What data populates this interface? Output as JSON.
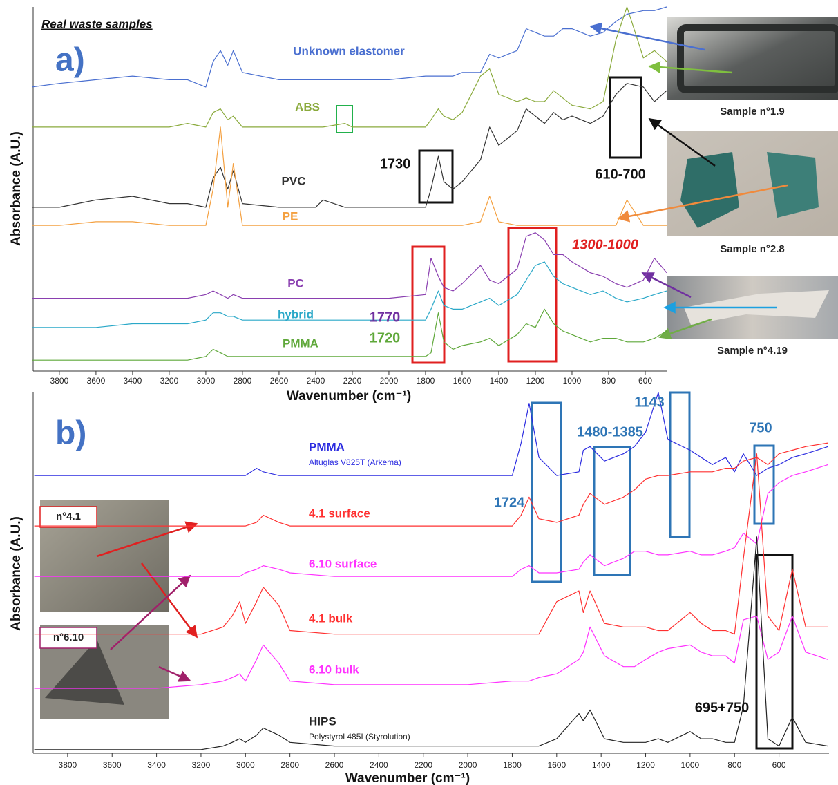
{
  "chart_data": [
    {
      "type": "line",
      "panel": "a)",
      "header": "Real waste samples",
      "x_label": "Wavenumber (cm⁻¹)",
      "y_label": "Absorbance (A.U.)",
      "xlim": [
        3943,
        483
      ],
      "xticks": [
        3800,
        3600,
        3400,
        3200,
        3000,
        2800,
        2600,
        2400,
        2200,
        2000,
        1800,
        1600,
        1400,
        1200,
        1000,
        800,
        600
      ],
      "ylim": [
        0,
        100
      ],
      "x": [
        3950,
        3800,
        3600,
        3400,
        3200,
        3100,
        3000,
        2960,
        2920,
        2880,
        2850,
        2800,
        2600,
        2400,
        2360,
        2240,
        2200,
        2000,
        1800,
        1770,
        1730,
        1700,
        1650,
        1600,
        1500,
        1450,
        1400,
        1300,
        1250,
        1200,
        1150,
        1100,
        1050,
        1000,
        900,
        830,
        760,
        700,
        610,
        550,
        483
      ],
      "series": [
        {
          "name": "Unknown elastomer",
          "color": "#4a6fd0",
          "values": [
            78,
            79,
            80,
            81,
            80,
            80,
            78,
            85,
            88,
            84,
            88,
            82,
            80,
            80,
            80,
            80,
            80,
            80,
            81,
            81,
            81,
            81,
            81,
            82,
            82,
            87,
            86,
            88,
            94,
            93,
            92,
            92,
            94,
            94,
            92,
            93,
            96,
            98,
            99,
            99,
            100
          ]
        },
        {
          "name": "ABS",
          "color": "#8aaa3c",
          "values": [
            67,
            67,
            67,
            67,
            67,
            68,
            67,
            71,
            72,
            69,
            70,
            67,
            67,
            67,
            67,
            68,
            67,
            67,
            67,
            69,
            72,
            70,
            69,
            71,
            81,
            83,
            76,
            74,
            75,
            74,
            74,
            77,
            75,
            73,
            72,
            74,
            91,
            100,
            86,
            88,
            85
          ]
        },
        {
          "name": "PVC",
          "color": "#333333",
          "values": [
            45,
            45,
            47,
            48,
            46,
            46,
            45,
            53,
            56,
            50,
            55,
            46,
            45,
            45,
            47,
            45,
            45,
            45,
            45,
            50,
            59,
            52,
            50,
            52,
            58,
            67,
            62,
            66,
            72,
            70,
            68,
            71,
            69,
            70,
            68,
            70,
            76,
            79,
            78,
            74,
            77
          ]
        },
        {
          "name": "PE",
          "color": "#f4a040",
          "values": [
            40,
            40,
            41,
            41,
            40,
            40,
            40,
            50,
            67,
            45,
            57,
            40,
            40,
            40,
            40,
            40,
            40,
            40,
            40,
            40,
            40,
            40,
            40,
            40,
            41,
            48,
            41,
            40,
            40,
            40,
            40,
            40,
            40,
            40,
            40,
            40,
            40,
            47,
            40,
            40,
            40
          ]
        },
        {
          "name": "PC",
          "color": "#8a3fb0",
          "values": [
            20,
            20,
            20,
            20,
            20,
            20,
            21,
            22,
            21,
            20,
            21,
            20,
            20,
            20,
            20,
            20,
            20,
            20,
            21,
            31,
            26,
            23,
            22,
            24,
            29,
            25,
            24,
            28,
            37,
            38,
            36,
            32,
            32,
            30,
            27,
            26,
            24,
            23,
            25,
            31,
            27
          ]
        },
        {
          "name": "hybrid",
          "color": "#2aa8c8",
          "values": [
            12,
            12,
            12,
            13,
            13,
            13,
            14,
            16,
            16,
            15,
            15,
            14,
            14,
            14,
            14,
            14,
            14,
            14,
            14,
            17,
            22,
            18,
            17,
            17,
            19,
            20,
            18,
            21,
            25,
            29,
            30,
            26,
            24,
            23,
            21,
            22,
            20,
            19,
            20,
            21,
            22
          ]
        },
        {
          "name": "PMMA",
          "color": "#5fa83a",
          "values": [
            3,
            3,
            3,
            3,
            3,
            3,
            4,
            6,
            5,
            4,
            4,
            4,
            4,
            4,
            4,
            4,
            4,
            4,
            4,
            5,
            16,
            8,
            6,
            7,
            8,
            9,
            7,
            10,
            13,
            12,
            17,
            13,
            11,
            10,
            8,
            9,
            9,
            8,
            8,
            9,
            11
          ]
        }
      ],
      "annotations": [
        {
          "text": "1730",
          "color": "#111111"
        },
        {
          "text": "610-700",
          "color": "#111111"
        },
        {
          "text": "1300-1000",
          "color": "#e02020"
        },
        {
          "text": "1770",
          "color": "#7030a0"
        },
        {
          "text": "1720",
          "color": "#5fa83a"
        }
      ],
      "samples": [
        "Sample n°1.9",
        "Sample n°2.8",
        "Sample n°4.19"
      ]
    },
    {
      "type": "line",
      "panel": "b)",
      "x_label": "Wavenumber (cm⁻¹)",
      "y_label": "Absorbance (A.U.)",
      "xlim": [
        3955,
        375
      ],
      "xticks": [
        3800,
        3600,
        3400,
        3200,
        3000,
        2800,
        2600,
        2400,
        2200,
        2000,
        1800,
        1600,
        1400,
        1200,
        1000,
        800,
        600
      ],
      "ylim": [
        0,
        100
      ],
      "x": [
        3950,
        3800,
        3600,
        3400,
        3200,
        3100,
        3060,
        3026,
        3000,
        2950,
        2920,
        2850,
        2800,
        2600,
        2400,
        2000,
        1800,
        1760,
        1724,
        1680,
        1600,
        1500,
        1480,
        1450,
        1385,
        1300,
        1250,
        1200,
        1143,
        1100,
        1000,
        950,
        900,
        840,
        800,
        760,
        700,
        650,
        600,
        540,
        480,
        380
      ],
      "series": [
        {
          "name": "PMMA",
          "note": "Altuglas V825T (Arkema)",
          "color": "#2b2be0",
          "values": [
            77,
            77,
            77,
            77,
            77,
            77,
            77,
            77,
            77,
            79,
            78,
            77,
            77,
            77,
            77,
            77,
            77,
            86,
            97,
            82,
            77,
            78,
            84,
            85,
            81,
            83,
            85,
            89,
            100,
            87,
            84,
            82,
            80,
            82,
            78,
            83,
            77,
            79,
            80,
            82,
            83,
            85
          ]
        },
        {
          "name": "4.1 surface",
          "color": "#ff3030",
          "values": [
            63,
            63,
            63,
            63,
            63,
            63,
            63,
            63,
            63,
            64,
            66,
            64,
            63,
            63,
            63,
            63,
            63,
            66,
            71,
            65,
            64,
            66,
            69,
            72,
            69,
            71,
            73,
            76,
            77,
            77,
            78,
            78,
            78,
            79,
            79,
            81,
            82,
            80,
            83,
            84,
            85,
            86
          ]
        },
        {
          "name": "6.10 surface",
          "color": "#ff30ff",
          "values": [
            49,
            49,
            49,
            49,
            49,
            49,
            49,
            49,
            50,
            51,
            52,
            51,
            50,
            49,
            49,
            49,
            49,
            51,
            52,
            50,
            50,
            51,
            53,
            55,
            52,
            54,
            56,
            56,
            55,
            55,
            56,
            55,
            55,
            56,
            57,
            61,
            58,
            72,
            75,
            77,
            78,
            80
          ]
        },
        {
          "name": "4.1 bulk",
          "color": "#ff3030",
          "values": [
            33,
            33,
            33,
            33,
            33,
            35,
            38,
            42,
            36,
            42,
            46,
            41,
            34,
            33,
            33,
            33,
            33,
            33,
            33,
            33,
            42,
            45,
            39,
            45,
            36,
            35,
            35,
            35,
            34,
            34,
            39,
            36,
            34,
            34,
            33,
            54,
            83,
            38,
            34,
            51,
            35,
            35
          ]
        },
        {
          "name": "6.10 bulk",
          "color": "#ff30ff",
          "values": [
            18,
            18,
            18,
            18,
            19,
            20,
            21,
            22,
            20,
            26,
            30,
            25,
            20,
            19,
            19,
            19,
            20,
            20,
            20,
            21,
            22,
            26,
            28,
            35,
            27,
            24,
            24,
            26,
            28,
            29,
            30,
            28,
            27,
            27,
            25,
            37,
            38,
            26,
            28,
            38,
            28,
            26
          ]
        },
        {
          "name": "HIPS",
          "note": "Polystyrol 485I (Styrolution)",
          "color": "#222222",
          "values": [
            1,
            1,
            1,
            1,
            1,
            2,
            3,
            4,
            3,
            5,
            7,
            5,
            3,
            2,
            2,
            2,
            2,
            2,
            2,
            2,
            4,
            11,
            9,
            12,
            4,
            3,
            3,
            3,
            4,
            3,
            6,
            4,
            4,
            3,
            3,
            13,
            60,
            4,
            2,
            10,
            3,
            2
          ]
        }
      ],
      "annotations": [
        {
          "text": "1724",
          "color": "#2e75b6"
        },
        {
          "text": "1480-1385",
          "color": "#2e75b6"
        },
        {
          "text": "1143",
          "color": "#2e75b6"
        },
        {
          "text": "750",
          "color": "#2e75b6"
        },
        {
          "text": "695+750",
          "color": "#111111"
        }
      ],
      "samples": [
        "n°4.1",
        "n°6.10"
      ]
    }
  ]
}
